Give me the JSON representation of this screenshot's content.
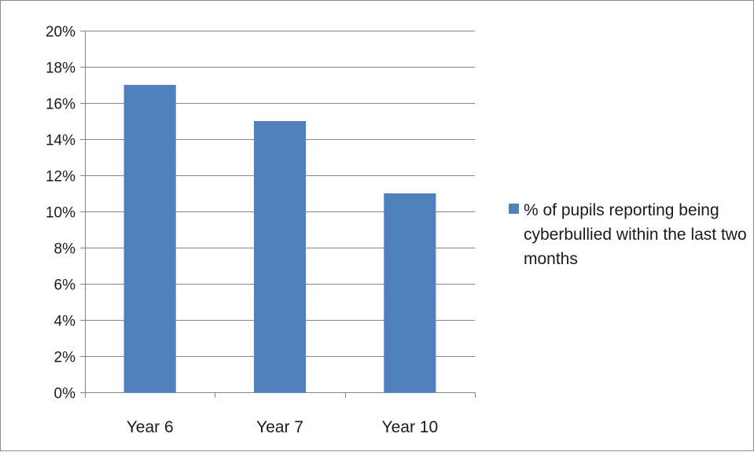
{
  "chart_data": {
    "type": "bar",
    "categories": [
      "Year 6",
      "Year 7",
      "Year 10"
    ],
    "series": [
      {
        "name": "% of pupils reporting being cyberbullied within the last two months",
        "values": [
          17,
          15,
          11
        ],
        "color": "#4f81bd"
      }
    ],
    "ylim": [
      0,
      20
    ],
    "y_ticks": [
      0,
      2,
      4,
      6,
      8,
      10,
      12,
      14,
      16,
      18,
      20
    ],
    "y_tick_labels": [
      "0%",
      "2%",
      "4%",
      "6%",
      "8%",
      "10%",
      "12%",
      "14%",
      "16%",
      "18%",
      "20%"
    ],
    "grid": true,
    "legend_position": "right",
    "title": "",
    "xlabel": "",
    "ylabel": ""
  }
}
